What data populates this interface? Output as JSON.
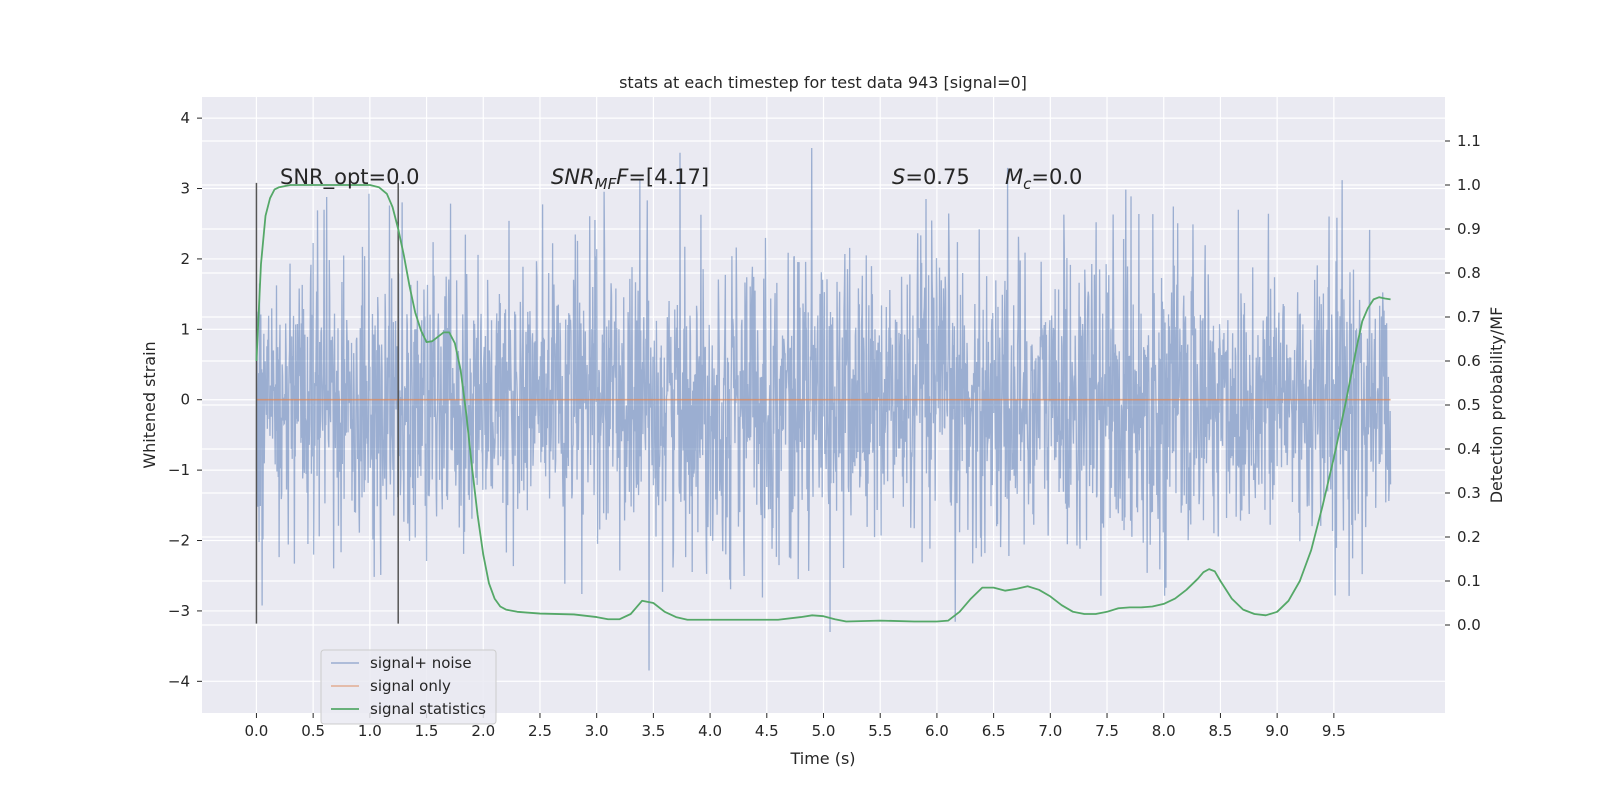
{
  "chart_data": {
    "type": "line",
    "title": "stats at each timestep for test data 943 [signal=0]",
    "xlabel": "Time (s)",
    "ylabel_left": "Whitened strain",
    "ylabel_right": "Detection probability/MF",
    "xlim": [
      -0.48,
      10.48
    ],
    "ylim_left": [
      -4.45,
      4.3
    ],
    "ylim_right": [
      -0.2,
      1.2
    ],
    "x_ticks": [
      "0.0",
      "0.5",
      "1.0",
      "1.5",
      "2.0",
      "2.5",
      "3.0",
      "3.5",
      "4.0",
      "4.5",
      "5.0",
      "5.5",
      "6.0",
      "6.5",
      "7.0",
      "7.5",
      "8.0",
      "8.5",
      "9.0",
      "9.5"
    ],
    "y_left_ticks": [
      "4",
      "3",
      "2",
      "1",
      "0",
      "−1",
      "−2",
      "−3",
      "−4"
    ],
    "y_right_ticks": [
      "1.1",
      "1.0",
      "0.9",
      "0.8",
      "0.7",
      "0.6",
      "0.5",
      "0.4",
      "0.3",
      "0.2",
      "0.1",
      "0.0"
    ],
    "grid": true,
    "legend_position": "lower-left",
    "annotations": {
      "snr_opt": "SNR_opt=0.0",
      "snr_mf_prefix": "SNR",
      "snr_mf_sub": "MF",
      "snr_mf_suffix": "=[4.17]",
      "s_symbol": "S",
      "s_value": "=0.75",
      "mc_symbol": "M",
      "mc_sub": "c",
      "mc_value": "=0.0"
    },
    "vertical_lines_x": [
      0.0,
      1.25
    ],
    "series": [
      {
        "name": "signal+ noise",
        "color": "#4c72b0",
        "axis": "left",
        "x_range": [
          0.0,
          10.0
        ],
        "style": "dense noise, typical amplitude about ±1.3, extremes up to 3.9 / -4.1"
      },
      {
        "name": "signal only",
        "color": "#dd8452",
        "axis": "left",
        "x": [
          0.0,
          10.0
        ],
        "y": [
          0.0,
          0.0
        ]
      },
      {
        "name": "signal statistics",
        "color": "#55a868",
        "axis": "right",
        "x": [
          0.0,
          0.04,
          0.08,
          0.12,
          0.16,
          0.2,
          0.3,
          0.5,
          0.7,
          0.9,
          1.0,
          1.08,
          1.15,
          1.2,
          1.25,
          1.3,
          1.35,
          1.4,
          1.45,
          1.5,
          1.55,
          1.6,
          1.65,
          1.7,
          1.75,
          1.8,
          1.85,
          1.9,
          1.95,
          2.0,
          2.05,
          2.1,
          2.15,
          2.2,
          2.3,
          2.5,
          2.8,
          3.0,
          3.1,
          3.2,
          3.3,
          3.4,
          3.5,
          3.6,
          3.7,
          3.8,
          4.0,
          4.3,
          4.6,
          4.8,
          4.9,
          5.0,
          5.1,
          5.2,
          5.5,
          5.8,
          6.0,
          6.1,
          6.2,
          6.3,
          6.4,
          6.5,
          6.6,
          6.7,
          6.8,
          6.9,
          7.0,
          7.1,
          7.2,
          7.3,
          7.4,
          7.5,
          7.6,
          7.7,
          7.8,
          7.9,
          8.0,
          8.1,
          8.2,
          8.3,
          8.35,
          8.4,
          8.45,
          8.5,
          8.6,
          8.7,
          8.8,
          8.9,
          9.0,
          9.1,
          9.2,
          9.3,
          9.4,
          9.5,
          9.6,
          9.7,
          9.75,
          9.8,
          9.85,
          9.9,
          9.95,
          10.0
        ],
        "y": [
          0.6,
          0.82,
          0.93,
          0.97,
          0.99,
          0.995,
          1.0,
          1.0,
          1.0,
          1.0,
          1.0,
          0.995,
          0.98,
          0.95,
          0.9,
          0.84,
          0.77,
          0.71,
          0.67,
          0.643,
          0.645,
          0.655,
          0.665,
          0.665,
          0.64,
          0.58,
          0.48,
          0.36,
          0.25,
          0.16,
          0.095,
          0.06,
          0.042,
          0.035,
          0.03,
          0.026,
          0.024,
          0.018,
          0.013,
          0.013,
          0.025,
          0.055,
          0.05,
          0.03,
          0.018,
          0.012,
          0.012,
          0.012,
          0.012,
          0.018,
          0.022,
          0.02,
          0.013,
          0.008,
          0.01,
          0.008,
          0.008,
          0.01,
          0.03,
          0.06,
          0.085,
          0.085,
          0.078,
          0.082,
          0.088,
          0.08,
          0.065,
          0.045,
          0.03,
          0.025,
          0.025,
          0.03,
          0.038,
          0.04,
          0.04,
          0.042,
          0.048,
          0.06,
          0.08,
          0.105,
          0.12,
          0.127,
          0.122,
          0.1,
          0.06,
          0.035,
          0.025,
          0.022,
          0.03,
          0.055,
          0.1,
          0.17,
          0.27,
          0.38,
          0.5,
          0.63,
          0.69,
          0.72,
          0.74,
          0.745,
          0.742,
          0.74
        ]
      }
    ]
  }
}
